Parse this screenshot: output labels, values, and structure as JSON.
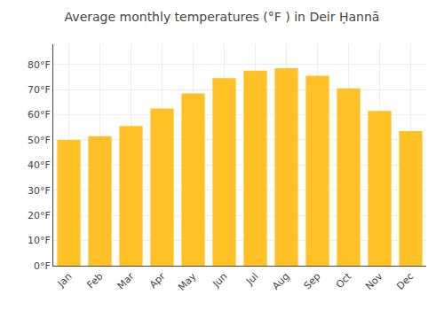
{
  "chart_data": {
    "type": "bar",
    "title": "Average monthly temperatures (°F ) in Deir Ḥannā",
    "categories": [
      "Jan",
      "Feb",
      "Mar",
      "Apr",
      "May",
      "Jun",
      "Jul",
      "Aug",
      "Sep",
      "Oct",
      "Nov",
      "Dec"
    ],
    "values": [
      50.0,
      51.5,
      55.5,
      62.5,
      68.5,
      74.5,
      77.5,
      78.5,
      75.5,
      70.5,
      61.5,
      53.5
    ],
    "color": "#FFC125",
    "ylim": [
      0,
      88
    ],
    "yticks": [
      {
        "value": 0,
        "label": "0°F"
      },
      {
        "value": 10,
        "label": "10°F"
      },
      {
        "value": 20,
        "label": "20°F"
      },
      {
        "value": 30,
        "label": "30°F"
      },
      {
        "value": 40,
        "label": "40°F"
      },
      {
        "value": 50,
        "label": "50°F"
      },
      {
        "value": 60,
        "label": "60°F"
      },
      {
        "value": 70,
        "label": "70°F"
      },
      {
        "value": 80,
        "label": "80°F"
      }
    ],
    "grid": true
  }
}
